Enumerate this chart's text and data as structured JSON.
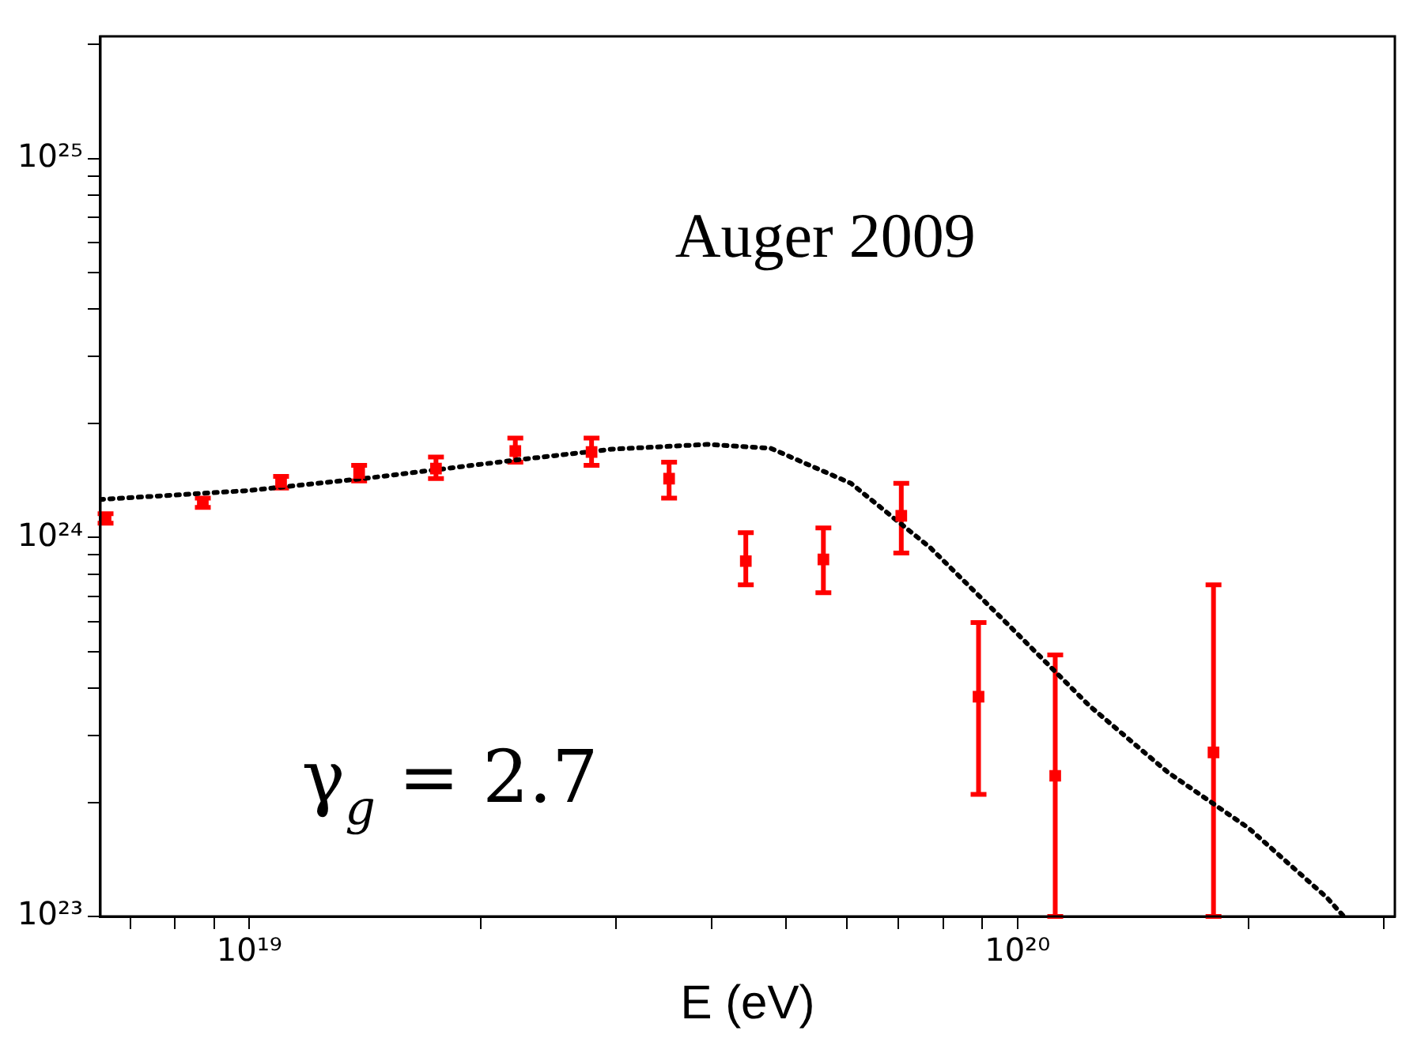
{
  "chart_data": {
    "type": "scatter",
    "xlabel": "E (eV)",
    "log": "xy",
    "grid": false,
    "legend": false,
    "annotations": [
      "Auger 2009",
      "γ$_{g}$ = 2.7"
    ],
    "xlim": [
      6.4e+18,
      3.1e+20
    ],
    "ylim": [
      1e+23,
      2.1e+25
    ],
    "xticks": [
      {
        "value": 7e+18,
        "label": null
      },
      {
        "value": 8e+18,
        "label": null
      },
      {
        "value": 9e+18,
        "label": null
      },
      {
        "value": 1e+19,
        "label": "10¹⁹"
      },
      {
        "value": 2e+19,
        "label": null
      },
      {
        "value": 3e+19,
        "label": null
      },
      {
        "value": 4e+19,
        "label": null
      },
      {
        "value": 5e+19,
        "label": null
      },
      {
        "value": 6e+19,
        "label": null
      },
      {
        "value": 7e+19,
        "label": null
      },
      {
        "value": 8e+19,
        "label": null
      },
      {
        "value": 9e+19,
        "label": null
      },
      {
        "value": 1e+20,
        "label": "10²⁰"
      },
      {
        "value": 2e+20,
        "label": null
      },
      {
        "value": 3e+20,
        "label": null
      }
    ],
    "yticks": [
      {
        "value": 1e+23,
        "label": "10²³"
      },
      {
        "value": 2e+23,
        "label": null
      },
      {
        "value": 3e+23,
        "label": null
      },
      {
        "value": 4e+23,
        "label": null
      },
      {
        "value": 5e+23,
        "label": null
      },
      {
        "value": 6e+23,
        "label": null
      },
      {
        "value": 7e+23,
        "label": null
      },
      {
        "value": 8e+23,
        "label": null
      },
      {
        "value": 9e+23,
        "label": null
      },
      {
        "value": 1e+24,
        "label": "10²⁴"
      },
      {
        "value": 2e+24,
        "label": null
      },
      {
        "value": 3e+24,
        "label": null
      },
      {
        "value": 4e+24,
        "label": null
      },
      {
        "value": 5e+24,
        "label": null
      },
      {
        "value": 6e+24,
        "label": null
      },
      {
        "value": 7e+24,
        "label": null
      },
      {
        "value": 8e+24,
        "label": null
      },
      {
        "value": 9e+24,
        "label": null
      },
      {
        "value": 1e+25,
        "label": "10²⁵"
      },
      {
        "value": 2e+25,
        "label": null
      }
    ],
    "series": [
      {
        "type": "scatter",
        "marker": "square",
        "color": "#ff0000",
        "x": [
          6.5e+18,
          8.7e+18,
          1.1e+19,
          1.39e+19,
          1.75e+19,
          2.22e+19,
          2.79e+19,
          3.52e+19,
          4.43e+19,
          5.59e+19,
          7.06e+19,
          8.9e+19,
          1.12e+20,
          1.8e+20
        ],
        "values": [
          1.12e+24,
          1.23e+24,
          1.4e+24,
          1.48e+24,
          1.52e+24,
          1.69e+24,
          1.68e+24,
          1.43e+24,
          8.66e+23,
          8.75e+23,
          1.14e+24,
          3.8e+23,
          2.35e+23,
          2.71e+23
        ],
        "errors": [
          [
            1.09e+24,
            1.155e+24
          ],
          [
            1.2e+24,
            1.27e+24
          ],
          [
            1.35e+24,
            1.45e+24
          ],
          [
            1.41e+24,
            1.55e+24
          ],
          [
            1.43e+24,
            1.63e+24
          ],
          [
            1.58e+24,
            1.83e+24
          ],
          [
            1.55e+24,
            1.83e+24
          ],
          [
            1.27e+24,
            1.58e+24
          ],
          [
            7.5e+23,
            1.03e+24
          ],
          [
            7.15e+23,
            1.06e+24
          ],
          [
            9.1e+23,
            1.39e+24
          ],
          [
            2.1e+23,
            5.96e+23
          ],
          [
            1e+23,
            4.9e+23
          ],
          [
            1e+23,
            7.5e+23
          ]
        ]
      },
      {
        "type": "line",
        "color": "#000000",
        "line_style": "dotted",
        "x": [
          6.4e+18,
          7.8e+18,
          1e+19,
          1.45e+19,
          2.22e+19,
          2.97e+19,
          3.94e+19,
          4.77e+19,
          6.07e+19,
          7.7e+19,
          9.8e+19,
          1.24e+20,
          1.57e+20,
          2e+20,
          2.53e+20,
          2.66e+20
        ],
        "values": [
          1.26e+24,
          1.29e+24,
          1.33e+24,
          1.44e+24,
          1.6e+24,
          1.71e+24,
          1.76e+24,
          1.72e+24,
          1.39e+24,
          9.4e+23,
          5.8e+23,
          3.6e+23,
          2.4e+23,
          1.71e+23,
          1.12e+23,
          1e+23
        ]
      }
    ]
  }
}
